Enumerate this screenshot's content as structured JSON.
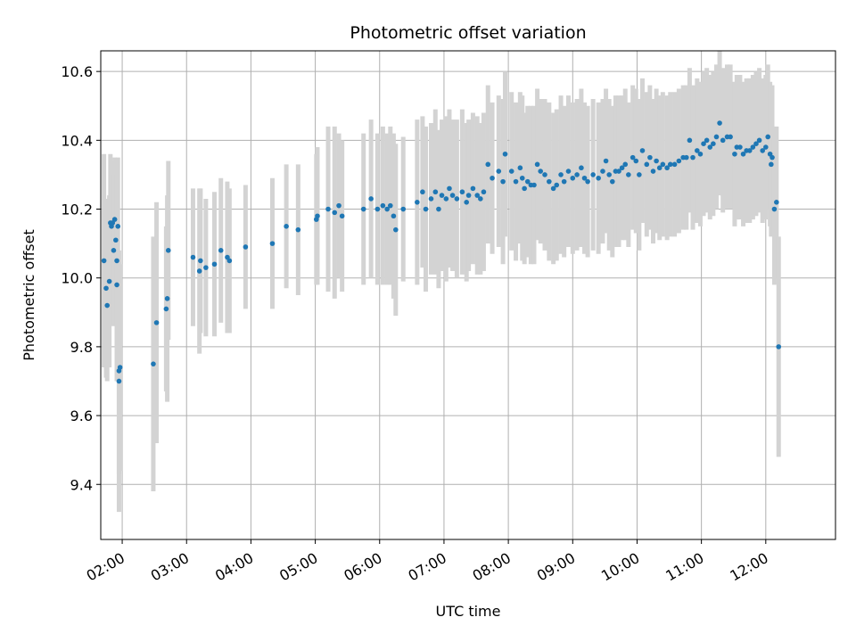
{
  "chart_data": {
    "type": "scatter",
    "title": "Photometric offset variation",
    "xlabel": "UTC time",
    "ylabel": "Photometric offset",
    "xlim": [
      "01:40",
      "13:05"
    ],
    "ylim": [
      9.24,
      10.66
    ],
    "xticks": [
      "02:00",
      "03:00",
      "04:00",
      "05:00",
      "06:00",
      "07:00",
      "08:00",
      "09:00",
      "10:00",
      "11:00",
      "12:00"
    ],
    "yticks": [
      9.4,
      9.6,
      9.8,
      10.0,
      10.2,
      10.4,
      10.6
    ],
    "ytick_labels": [
      "9.4",
      "9.6",
      "9.8",
      "10.0",
      "10.2",
      "10.4",
      "10.6"
    ],
    "grid": true,
    "colors": {
      "point": "#1f77b4",
      "error_bar": "#d3d3d3"
    },
    "series": [
      {
        "points": [
          [
            "01:43",
            10.05,
            0.31
          ],
          [
            "01:45",
            9.97,
            0.26
          ],
          [
            "01:46",
            9.92,
            0.22
          ],
          [
            "01:48",
            9.99,
            0.25
          ],
          [
            "01:49",
            10.16,
            0.2
          ],
          [
            "01:50",
            10.15,
            0.18
          ],
          [
            "01:51",
            10.16,
            0.18
          ],
          [
            "01:52",
            10.08,
            0.22
          ],
          [
            "01:53",
            10.17,
            0.18
          ],
          [
            "01:54",
            10.11,
            0.22
          ],
          [
            "01:55",
            10.05,
            0.25
          ],
          [
            "01:55",
            9.98,
            0.28
          ],
          [
            "01:56",
            10.15,
            0.2
          ],
          [
            "01:57",
            9.73,
            0.3
          ],
          [
            "01:57",
            9.7,
            0.38
          ],
          [
            "01:58",
            9.74,
            0.3
          ],
          [
            "02:29",
            9.75,
            0.37
          ],
          [
            "02:32",
            9.87,
            0.35
          ],
          [
            "02:41",
            9.91,
            0.24
          ],
          [
            "02:42",
            9.94,
            0.3
          ],
          [
            "02:43",
            10.08,
            0.26
          ],
          [
            "03:06",
            10.06,
            0.2
          ],
          [
            "03:12",
            10.02,
            0.24
          ],
          [
            "03:13",
            10.05,
            0.21
          ],
          [
            "03:18",
            10.03,
            0.2
          ],
          [
            "03:26",
            10.04,
            0.21
          ],
          [
            "03:32",
            10.08,
            0.21
          ],
          [
            "03:38",
            10.06,
            0.22
          ],
          [
            "03:40",
            10.05,
            0.21
          ],
          [
            "03:55",
            10.09,
            0.18
          ],
          [
            "04:20",
            10.1,
            0.19
          ],
          [
            "04:33",
            10.15,
            0.18
          ],
          [
            "04:44",
            10.14,
            0.19
          ],
          [
            "05:01",
            10.17,
            0.19
          ],
          [
            "05:02",
            10.18,
            0.2
          ],
          [
            "05:12",
            10.2,
            0.24
          ],
          [
            "05:18",
            10.19,
            0.25
          ],
          [
            "05:22",
            10.21,
            0.21
          ],
          [
            "05:25",
            10.18,
            0.22
          ],
          [
            "05:45",
            10.2,
            0.22
          ],
          [
            "05:52",
            10.23,
            0.23
          ],
          [
            "05:58",
            10.2,
            0.22
          ],
          [
            "06:03",
            10.21,
            0.23
          ],
          [
            "06:07",
            10.2,
            0.22
          ],
          [
            "06:10",
            10.21,
            0.23
          ],
          [
            "06:13",
            10.18,
            0.24
          ],
          [
            "06:15",
            10.14,
            0.25
          ],
          [
            "06:22",
            10.2,
            0.21
          ],
          [
            "06:35",
            10.22,
            0.24
          ],
          [
            "06:40",
            10.25,
            0.22
          ],
          [
            "06:43",
            10.2,
            0.24
          ],
          [
            "06:48",
            10.23,
            0.22
          ],
          [
            "06:52",
            10.25,
            0.24
          ],
          [
            "06:55",
            10.2,
            0.23
          ],
          [
            "06:58",
            10.24,
            0.22
          ],
          [
            "07:02",
            10.23,
            0.24
          ],
          [
            "07:05",
            10.26,
            0.23
          ],
          [
            "07:08",
            10.24,
            0.22
          ],
          [
            "07:12",
            10.23,
            0.23
          ],
          [
            "07:17",
            10.25,
            0.24
          ],
          [
            "07:21",
            10.22,
            0.23
          ],
          [
            "07:23",
            10.24,
            0.22
          ],
          [
            "07:27",
            10.26,
            0.22
          ],
          [
            "07:31",
            10.24,
            0.23
          ],
          [
            "07:34",
            10.23,
            0.22
          ],
          [
            "07:37",
            10.25,
            0.23
          ],
          [
            "07:41",
            10.33,
            0.23
          ],
          [
            "07:45",
            10.29,
            0.22
          ],
          [
            "07:51",
            10.31,
            0.22
          ],
          [
            "07:55",
            10.28,
            0.24
          ],
          [
            "07:57",
            10.36,
            0.24
          ],
          [
            "08:03",
            10.31,
            0.23
          ],
          [
            "08:07",
            10.28,
            0.23
          ],
          [
            "08:11",
            10.32,
            0.22
          ],
          [
            "08:13",
            10.29,
            0.24
          ],
          [
            "08:15",
            10.26,
            0.22
          ],
          [
            "08:18",
            10.28,
            0.22
          ],
          [
            "08:21",
            10.27,
            0.23
          ],
          [
            "08:24",
            10.27,
            0.23
          ],
          [
            "08:27",
            10.33,
            0.22
          ],
          [
            "08:30",
            10.31,
            0.21
          ],
          [
            "08:34",
            10.3,
            0.22
          ],
          [
            "08:38",
            10.28,
            0.23
          ],
          [
            "08:42",
            10.26,
            0.22
          ],
          [
            "08:45",
            10.27,
            0.22
          ],
          [
            "08:49",
            10.3,
            0.23
          ],
          [
            "08:52",
            10.28,
            0.22
          ],
          [
            "08:56",
            10.31,
            0.22
          ],
          [
            "09:00",
            10.29,
            0.22
          ],
          [
            "09:04",
            10.3,
            0.22
          ],
          [
            "09:08",
            10.32,
            0.23
          ],
          [
            "09:11",
            10.29,
            0.22
          ],
          [
            "09:14",
            10.28,
            0.22
          ],
          [
            "09:19",
            10.3,
            0.22
          ],
          [
            "09:24",
            10.29,
            0.22
          ],
          [
            "09:28",
            10.31,
            0.21
          ],
          [
            "09:31",
            10.34,
            0.21
          ],
          [
            "09:34",
            10.3,
            0.22
          ],
          [
            "09:37",
            10.28,
            0.22
          ],
          [
            "09:40",
            10.31,
            0.22
          ],
          [
            "09:43",
            10.31,
            0.22
          ],
          [
            "09:46",
            10.32,
            0.21
          ],
          [
            "09:49",
            10.33,
            0.22
          ],
          [
            "09:52",
            10.3,
            0.21
          ],
          [
            "09:56",
            10.35,
            0.21
          ],
          [
            "09:59",
            10.34,
            0.21
          ],
          [
            "10:02",
            10.3,
            0.22
          ],
          [
            "10:05",
            10.37,
            0.21
          ],
          [
            "10:09",
            10.33,
            0.21
          ],
          [
            "10:12",
            10.35,
            0.21
          ],
          [
            "10:15",
            10.31,
            0.21
          ],
          [
            "10:18",
            10.34,
            0.21
          ],
          [
            "10:21",
            10.32,
            0.21
          ],
          [
            "10:24",
            10.33,
            0.21
          ],
          [
            "10:28",
            10.32,
            0.21
          ],
          [
            "10:31",
            10.33,
            0.21
          ],
          [
            "10:35",
            10.33,
            0.21
          ],
          [
            "10:39",
            10.34,
            0.21
          ],
          [
            "10:43",
            10.35,
            0.21
          ],
          [
            "10:46",
            10.35,
            0.21
          ],
          [
            "10:49",
            10.4,
            0.21
          ],
          [
            "10:52",
            10.35,
            0.21
          ],
          [
            "10:56",
            10.37,
            0.21
          ],
          [
            "10:59",
            10.36,
            0.21
          ],
          [
            "11:02",
            10.39,
            0.21
          ],
          [
            "11:05",
            10.4,
            0.21
          ],
          [
            "11:08",
            10.38,
            0.21
          ],
          [
            "11:11",
            10.39,
            0.21
          ],
          [
            "11:14",
            10.41,
            0.21
          ],
          [
            "11:17",
            10.45,
            0.21
          ],
          [
            "11:20",
            10.4,
            0.21
          ],
          [
            "11:24",
            10.41,
            0.21
          ],
          [
            "11:27",
            10.41,
            0.21
          ],
          [
            "11:31",
            10.36,
            0.21
          ],
          [
            "11:33",
            10.38,
            0.21
          ],
          [
            "11:36",
            10.38,
            0.21
          ],
          [
            "11:39",
            10.36,
            0.21
          ],
          [
            "11:42",
            10.37,
            0.21
          ],
          [
            "11:45",
            10.37,
            0.21
          ],
          [
            "11:48",
            10.38,
            0.21
          ],
          [
            "11:51",
            10.39,
            0.21
          ],
          [
            "11:54",
            10.4,
            0.21
          ],
          [
            "11:57",
            10.37,
            0.21
          ],
          [
            "12:00",
            10.38,
            0.21
          ],
          [
            "12:02",
            10.41,
            0.21
          ],
          [
            "12:04",
            10.36,
            0.21
          ],
          [
            "12:05",
            10.33,
            0.21
          ],
          [
            "12:06",
            10.35,
            0.21
          ],
          [
            "12:08",
            10.2,
            0.22
          ],
          [
            "12:10",
            10.22,
            0.22
          ],
          [
            "12:12",
            9.8,
            0.32
          ]
        ]
      }
    ]
  }
}
